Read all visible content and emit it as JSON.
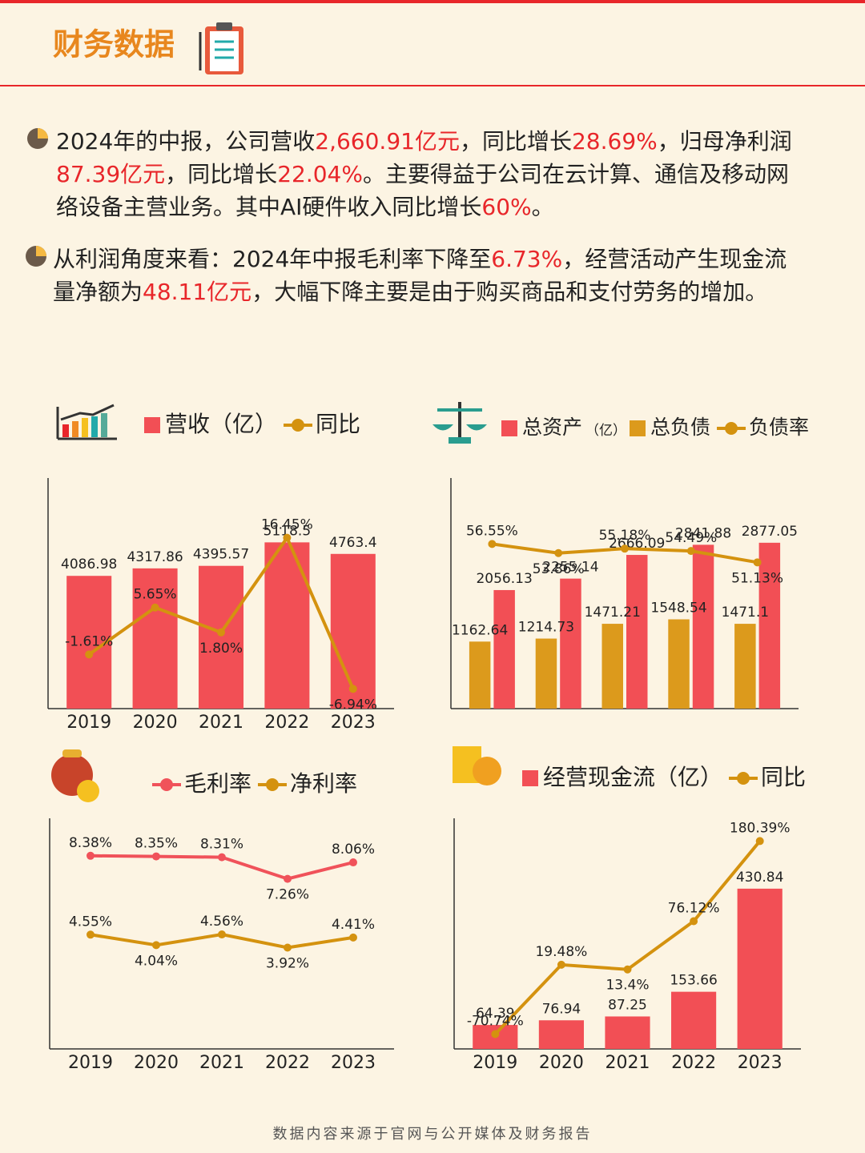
{
  "header": {
    "title": "财务数据"
  },
  "highlight_color": "#e8262a",
  "paragraphs": [
    [
      {
        "text": "2024年的中报，公司营收"
      },
      {
        "text": "2,660.91亿元",
        "highlight": true
      },
      {
        "text": "，同比增长"
      },
      {
        "text": "28.69%",
        "highlight": true
      },
      {
        "text": "，归母净利润"
      },
      {
        "text": "87.39亿元",
        "highlight": true
      },
      {
        "text": "，同比增长"
      },
      {
        "text": "22.04%",
        "highlight": true
      },
      {
        "text": "。主要得益于公司在云计算、通信及移动网络设备主营业务。其中AI硬件收入同比增长"
      },
      {
        "text": "60%",
        "highlight": true
      },
      {
        "text": "。"
      }
    ],
    [
      {
        "text": "从利润角度来看：2024年中报毛利率下降至"
      },
      {
        "text": "6.73%",
        "highlight": true
      },
      {
        "text": "，经营活动产生现金流量净额为"
      },
      {
        "text": "48.11亿元",
        "highlight": true
      },
      {
        "text": "，大幅下降主要是由于购买商品和支付劳务的增加。"
      }
    ]
  ],
  "chart_data": [
    {
      "type": "bar_line",
      "categories": [
        "2019",
        "2020",
        "2021",
        "2022",
        "2023"
      ],
      "series": [
        {
          "name": "营收（亿）",
          "type": "bar",
          "color": "#f24f55",
          "values": [
            4086.98,
            4317.86,
            4395.57,
            5118.5,
            4763.4
          ]
        },
        {
          "name": "同比",
          "type": "line",
          "axis": "y2",
          "color": "#d4920f",
          "values": [
            -1.61,
            5.65,
            1.8,
            16.45,
            -6.94
          ],
          "value_labels": [
            "-1.61%",
            "5.65%",
            "1.80%",
            "16.45%",
            "-6.94%"
          ]
        }
      ],
      "ylim": [
        0,
        7100
      ],
      "y2lim": [
        -10,
        25.7
      ]
    },
    {
      "type": "bar_line",
      "categories": [
        null,
        null,
        null,
        null,
        null
      ],
      "legend_note": "（亿）",
      "series": [
        {
          "name": "总资产",
          "type": "bar",
          "color": "#f24f55",
          "values": [
            2056.13,
            2255.14,
            2666.09,
            2841.88,
            2877.05
          ]
        },
        {
          "name": "总负债",
          "type": "bar",
          "color": "#dc9a1c",
          "values": [
            1162.64,
            1214.73,
            1471.21,
            1548.54,
            1471.1
          ]
        },
        {
          "name": "负债率",
          "type": "line",
          "axis": "y2",
          "color": "#d4920f",
          "values": [
            56.55,
            53.86,
            55.18,
            54.49,
            51.13
          ],
          "value_labels": [
            "56.55%",
            "53.86%",
            "55.18%",
            "54.49%",
            "51.13%"
          ]
        }
      ],
      "ylim": [
        0,
        4000
      ],
      "y2lim": [
        8,
        76
      ]
    },
    {
      "type": "line",
      "categories": [
        "2019",
        "2020",
        "2021",
        "2022",
        "2023"
      ],
      "series": [
        {
          "name": "毛利率",
          "type": "line",
          "color": "#f0525a",
          "values": [
            8.38,
            8.35,
            8.31,
            7.26,
            8.06
          ],
          "value_labels": [
            "8.38%",
            "8.35%",
            "8.31%",
            "7.26%",
            "8.06%"
          ]
        },
        {
          "name": "净利率",
          "type": "line",
          "color": "#d4920f",
          "values": [
            4.55,
            4.04,
            4.56,
            3.92,
            4.41
          ],
          "value_labels": [
            "4.55%",
            "4.04%",
            "4.56%",
            "3.92%",
            "4.41%"
          ]
        }
      ],
      "ylim": [
        -1,
        10.2
      ]
    },
    {
      "type": "bar_line",
      "categories": [
        "2019",
        "2020",
        "2021",
        "2022",
        "2023"
      ],
      "series": [
        {
          "name": "经营现金流（亿）",
          "type": "bar",
          "color": "#f24f55",
          "values": [
            64.39,
            76.94,
            87.25,
            153.66,
            430.84
          ]
        },
        {
          "name": "同比",
          "type": "line",
          "axis": "y2",
          "color": "#d4920f",
          "values": [
            -70.74,
            19.48,
            13.4,
            76.12,
            180.39
          ],
          "value_labels": [
            "-70.74%",
            "19.48%",
            "13.4%",
            "76.12%",
            "180.39%"
          ]
        }
      ],
      "ylim": [
        0,
        620
      ],
      "y2lim": [
        -90,
        210
      ]
    }
  ],
  "footer": "数据内容来源于官网与公开媒体及财务报告"
}
